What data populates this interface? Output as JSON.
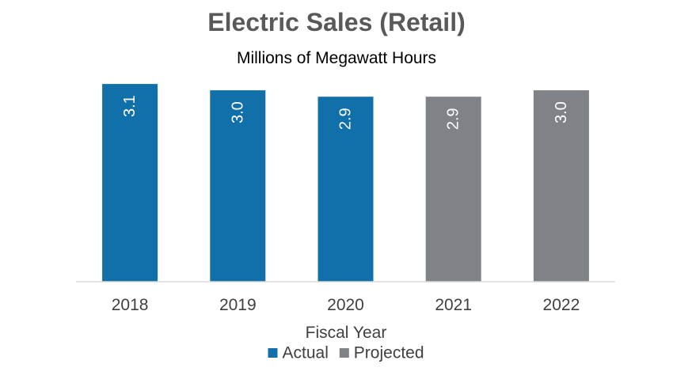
{
  "chart_data": {
    "type": "bar",
    "title": "Electric Sales (Retail)",
    "subtitle": "Millions of Megawatt Hours",
    "xlabel": "Fiscal Year",
    "ylabel": "",
    "categories": [
      "2018",
      "2019",
      "2020",
      "2021",
      "2022"
    ],
    "values": [
      3.1,
      3.0,
      2.9,
      2.9,
      3.0
    ],
    "data_labels": [
      "3.1",
      "3.0",
      "2.9",
      "2.9",
      "3.0"
    ],
    "point_series": [
      "Actual",
      "Actual",
      "Actual",
      "Projected",
      "Projected"
    ],
    "series": [
      {
        "name": "Actual",
        "color": "#1170aa"
      },
      {
        "name": "Projected",
        "color": "#7f8287"
      }
    ],
    "ylim": [
      0,
      3.2
    ],
    "grid": false,
    "legend_position": "bottom"
  }
}
